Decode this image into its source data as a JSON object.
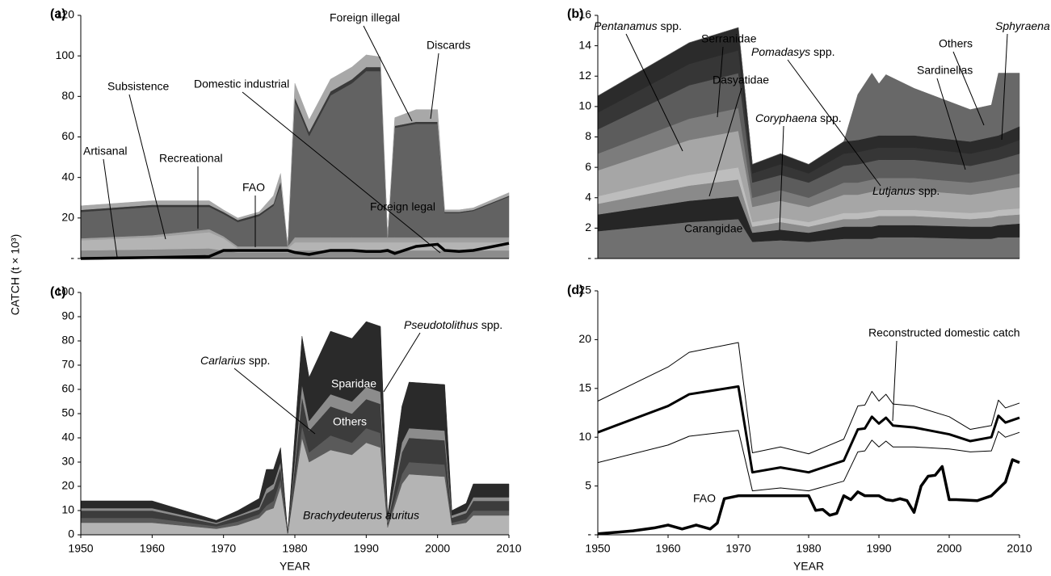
{
  "chart_data": [
    {
      "type": "stacked_area",
      "panel_label": "(a)",
      "ylabel": "CATCH (t × 10³)",
      "x": [
        1950,
        1960,
        1968,
        1970,
        1972,
        1975,
        1977,
        1978,
        1979,
        1980,
        1982,
        1985,
        1988,
        1990,
        1992,
        1993,
        1994,
        1997,
        2000,
        2001,
        2003,
        2005,
        2010
      ],
      "xlim": [
        1950,
        2010
      ],
      "ylim": [
        0,
        120
      ],
      "yticks": [
        {
          "value": 0,
          "label": "-"
        },
        20,
        40,
        60,
        80,
        100,
        120
      ],
      "series": [
        {
          "name": "Artisanal",
          "color": "#8c8c8c",
          "values": [
            4,
            4.5,
            5,
            4,
            3,
            3,
            3,
            3,
            3,
            4,
            4,
            4,
            4,
            4,
            4,
            4,
            4,
            4,
            4,
            4,
            4,
            4,
            4
          ]
        },
        {
          "name": "Subsistence",
          "color": "#b4b4b4",
          "values": [
            5,
            6,
            8,
            6,
            2,
            2,
            2,
            2,
            2,
            4,
            4,
            4,
            4,
            4,
            4,
            4,
            4,
            4,
            4,
            4,
            4,
            4,
            4
          ]
        },
        {
          "name": "Recreational",
          "color": "#a0a0a0",
          "values": [
            1,
            1,
            1.5,
            1,
            1,
            1,
            1,
            1,
            1,
            1.5,
            1.5,
            1.5,
            1.5,
            1.5,
            1.5,
            1.5,
            1.5,
            1.5,
            1.5,
            1.5,
            1.5,
            1.5,
            1.5
          ]
        },
        {
          "name": "Domestic industrial",
          "color": "#9a9a9a",
          "values": [
            0,
            0,
            0,
            0,
            0,
            0,
            0,
            0,
            0,
            1,
            1,
            1,
            1,
            1,
            1,
            1,
            1,
            1,
            1,
            1,
            1,
            1,
            1
          ]
        },
        {
          "name": "Foreign legal",
          "color": "#626262",
          "values": [
            13,
            14,
            11,
            11,
            12,
            15,
            20,
            30,
            0,
            67,
            50,
            70,
            76,
            82,
            82,
            0,
            54,
            56,
            56,
            12,
            12,
            13,
            20
          ]
        },
        {
          "name": "Foreign illegal",
          "color": "#3a3a3a",
          "values": [
            1,
            1,
            1,
            1,
            1,
            1,
            1,
            2,
            0,
            2,
            2,
            2,
            2,
            2,
            2,
            0,
            1,
            1,
            1,
            0.5,
            0.5,
            0.5,
            0.5
          ]
        },
        {
          "name": "Discards",
          "color": "#a8a8a8",
          "values": [
            2,
            2,
            2,
            1,
            1,
            1,
            4,
            4,
            0,
            7,
            6,
            6,
            6,
            6,
            5,
            0,
            4,
            6,
            6,
            1,
            1,
            1,
            1.5
          ]
        }
      ],
      "lines": [
        {
          "name": "FAO",
          "color": "#000000",
          "line_width": 3.5,
          "values": [
            0,
            0.5,
            1,
            4,
            4,
            4,
            4,
            4,
            4,
            3,
            2,
            4,
            4,
            3.5,
            3.5,
            4,
            2.5,
            6,
            7,
            4,
            3.5,
            4,
            7.5
          ]
        }
      ],
      "annotations": [
        {
          "text": "Artisanal"
        },
        {
          "text": "Subsistence"
        },
        {
          "text": "Recreational"
        },
        {
          "text": "FAO"
        },
        {
          "text": "Domestic industrial"
        },
        {
          "text": "Foreign illegal"
        },
        {
          "text": "Discards"
        },
        {
          "text": "Foreign legal"
        }
      ]
    },
    {
      "type": "stacked_area",
      "panel_label": "(b)",
      "x": [
        1950,
        1963,
        1970,
        1972,
        1976,
        1980,
        1985,
        1987,
        1989,
        1990,
        1991,
        1995,
        2003,
        2006,
        2007,
        2010
      ],
      "xlim": [
        1950,
        2010
      ],
      "ylim": [
        0,
        16
      ],
      "yticks": [
        {
          "value": 0,
          "label": "-"
        },
        2,
        4,
        6,
        8,
        10,
        12,
        14,
        16
      ],
      "series": [
        {
          "name": "Carangidae",
          "color": "#707070",
          "values": [
            1.8,
            2.4,
            2.6,
            1.1,
            1.2,
            1.1,
            1.3,
            1.3,
            1.3,
            1.4,
            1.4,
            1.4,
            1.3,
            1.3,
            1.4,
            1.4
          ]
        },
        {
          "name": "Lutjanus spp.",
          "color": "#262626",
          "values": [
            1.1,
            1.4,
            1.5,
            0.6,
            0.7,
            0.6,
            0.8,
            0.8,
            0.8,
            0.8,
            0.8,
            0.8,
            0.8,
            0.8,
            0.8,
            0.9
          ]
        },
        {
          "name": "Coryphaena spp.",
          "color": "#8a8a8a",
          "values": [
            0.7,
            1.0,
            1.1,
            0.4,
            0.5,
            0.4,
            0.5,
            0.5,
            0.6,
            0.6,
            0.6,
            0.6,
            0.5,
            0.6,
            0.6,
            0.6
          ]
        },
        {
          "name": "Dasyatidae",
          "color": "#bdbdbd",
          "values": [
            0.5,
            0.7,
            0.8,
            0.3,
            0.3,
            0.3,
            0.4,
            0.4,
            0.4,
            0.4,
            0.4,
            0.4,
            0.4,
            0.4,
            0.4,
            0.4
          ]
        },
        {
          "name": "Pentanamus spp.",
          "color": "#a6a6a6",
          "values": [
            1.7,
            2.3,
            2.4,
            1.0,
            1.1,
            1.0,
            1.2,
            1.2,
            1.3,
            1.3,
            1.3,
            1.3,
            1.2,
            1.3,
            1.3,
            1.4
          ]
        },
        {
          "name": "Pomadasys spp.",
          "color": "#7c7c7c",
          "values": [
            1.1,
            1.4,
            1.5,
            0.6,
            0.7,
            0.6,
            0.8,
            0.8,
            0.8,
            0.8,
            0.8,
            0.8,
            0.8,
            0.8,
            0.8,
            0.9
          ]
        },
        {
          "name": "Serranidae",
          "color": "#5c5c5c",
          "values": [
            1.6,
            2.2,
            2.3,
            1.0,
            1.0,
            1.0,
            1.1,
            1.2,
            1.2,
            1.2,
            1.2,
            1.2,
            1.1,
            1.2,
            1.2,
            1.3
          ]
        },
        {
          "name": "Sardinellas",
          "color": "#363636",
          "values": [
            1.1,
            1.4,
            1.5,
            0.6,
            0.7,
            0.6,
            0.8,
            0.8,
            0.8,
            0.8,
            0.8,
            0.8,
            0.8,
            0.8,
            0.8,
            0.9
          ]
        },
        {
          "name": "Sphyraena spp.",
          "color": "#2b2b2b",
          "values": [
            1.1,
            1.4,
            1.5,
            0.6,
            0.7,
            0.6,
            0.8,
            0.8,
            0.8,
            0.8,
            0.8,
            0.8,
            0.8,
            0.8,
            0.8,
            0.9
          ]
        },
        {
          "name": "Others",
          "color": "#686868",
          "values": [
            0,
            0,
            0,
            0,
            0,
            0,
            0,
            3.0,
            4.2,
            3.4,
            4.0,
            3.1,
            2.1,
            2.1,
            4.1,
            3.5
          ]
        }
      ],
      "annotations": [
        {
          "text": "Pentanamus spp.",
          "italic": "genus"
        },
        {
          "text": "Serranidae"
        },
        {
          "text": "Dasyatidae"
        },
        {
          "text": "Pomadasys spp.",
          "italic": "genus"
        },
        {
          "text": "Others"
        },
        {
          "text": "Sphyraena spp.",
          "italic": "genus"
        },
        {
          "text": "Sardinellas"
        },
        {
          "text": "Coryphaena spp.",
          "italic": "genus"
        },
        {
          "text": "Lutjanus spp.",
          "italic": "genus"
        },
        {
          "text": "Carangidae"
        }
      ]
    },
    {
      "type": "stacked_area",
      "panel_label": "(c)",
      "xlabel": "YEAR",
      "x": [
        1950,
        1960,
        1969,
        1972,
        1975,
        1976,
        1977,
        1978,
        1979,
        1981,
        1982,
        1985,
        1988,
        1990,
        1992,
        1993,
        1995,
        1996,
        2001,
        2002,
        2004,
        2005,
        2010
      ],
      "xlim": [
        1950,
        2010
      ],
      "xticks": [
        1950,
        1960,
        1970,
        1980,
        1990,
        2000,
        2010
      ],
      "ylim": [
        0,
        100
      ],
      "yticks": [
        0,
        10,
        20,
        30,
        40,
        50,
        60,
        70,
        80,
        90,
        100
      ],
      "series": [
        {
          "name": "Brachydeuterus auritus",
          "color": "#b4b4b4",
          "values": [
            5,
            5,
            2.5,
            4,
            7,
            10,
            11,
            20,
            0.5,
            40,
            30,
            35,
            33,
            38,
            36,
            3,
            21,
            25,
            24,
            4,
            5,
            8,
            8
          ]
        },
        {
          "name": "Carlarius spp.",
          "color": "#5a5a5a",
          "values": [
            2,
            2,
            1,
            1.5,
            1.5,
            2,
            3,
            3,
            0,
            5,
            4,
            6,
            5,
            6,
            6,
            1,
            4,
            5,
            5,
            1,
            1.5,
            2,
            2
          ]
        },
        {
          "name": "Others",
          "color": "#3c3c3c",
          "values": [
            3,
            3,
            1,
            2,
            2,
            5,
            5,
            5,
            0,
            12,
            9,
            12,
            12,
            12,
            12,
            1,
            9,
            10,
            10,
            2,
            2.5,
            4,
            4
          ]
        },
        {
          "name": "Pseudotolithus spp.",
          "color": "#8c8c8c",
          "values": [
            1,
            1,
            0.5,
            0.5,
            1,
            2,
            2,
            2,
            0,
            5,
            4,
            5,
            5,
            5,
            5,
            1,
            4,
            4,
            4,
            1,
            1,
            1.5,
            1.5
          ]
        },
        {
          "name": "Sparidae",
          "color": "#2a2a2a",
          "values": [
            3,
            3,
            1,
            2,
            3.5,
            8,
            6,
            6,
            0.5,
            20,
            18,
            26,
            26,
            27,
            27,
            2,
            15,
            19,
            19,
            2,
            3,
            5.5,
            5.5
          ]
        }
      ],
      "annotations": [
        {
          "text": "Sparidae",
          "color": "#ffffff"
        },
        {
          "text": "Pseudotolithus spp.",
          "italic": "genus"
        },
        {
          "text": "Others",
          "color": "#ffffff"
        },
        {
          "text": "Carlarius spp.",
          "italic": "genus"
        },
        {
          "text": "Brachydeuterus auritus",
          "italic": "all"
        }
      ]
    },
    {
      "type": "line",
      "panel_label": "(d)",
      "xlabel": "YEAR",
      "x": [
        1950,
        1960,
        1963,
        1970,
        1972,
        1976,
        1980,
        1985,
        1987,
        1988,
        1989,
        1990,
        1991,
        1992,
        1995,
        2000,
        2003,
        2006,
        2007,
        2008,
        2010
      ],
      "xlim": [
        1950,
        2010
      ],
      "xticks": [
        1950,
        1960,
        1970,
        1980,
        1990,
        2000,
        2010
      ],
      "ylim": [
        0,
        25
      ],
      "yticks": [
        {
          "value": 0,
          "label": "-"
        },
        5,
        10,
        15,
        20,
        25
      ],
      "series": [
        {
          "name": "Reconstructed domestic catch",
          "color": "#000000",
          "line_width": 3,
          "values": [
            10.5,
            13.2,
            14.4,
            15.2,
            6.4,
            6.9,
            6.4,
            7.6,
            10.8,
            10.9,
            12.1,
            11.4,
            12,
            11.2,
            11,
            10.3,
            9.6,
            10,
            12.2,
            11.5,
            12
          ]
        },
        {
          "color": "#000000",
          "line_width": 1,
          "values": [
            13.7,
            17.2,
            18.7,
            19.7,
            8.4,
            9,
            8.3,
            9.8,
            13.2,
            13.3,
            14.7,
            13.7,
            14.4,
            13.4,
            13.2,
            12.1,
            10.8,
            11.2,
            13.8,
            13,
            13.5
          ]
        },
        {
          "color": "#000000",
          "line_width": 1,
          "values": [
            7.4,
            9.2,
            10.1,
            10.7,
            4.5,
            4.8,
            4.5,
            5.5,
            8.5,
            8.6,
            9.7,
            9,
            9.6,
            9,
            9,
            8.8,
            8.5,
            8.6,
            10.6,
            10,
            10.5
          ]
        },
        {
          "name": "FAO",
          "color": "#000000",
          "line_width": 3.5,
          "x": [
            1950,
            1955,
            1958,
            1960,
            1962,
            1964,
            1966,
            1967,
            1968,
            1970,
            1980,
            1981,
            1982,
            1983,
            1984,
            1985,
            1986,
            1987,
            1988,
            1990,
            1991,
            1992,
            1993,
            1994,
            1995,
            1996,
            1997,
            1998,
            1999,
            2000,
            2001,
            2004,
            2006,
            2008,
            2009,
            2010
          ],
          "values": [
            0.1,
            0.4,
            0.7,
            1,
            0.6,
            1,
            0.6,
            1.2,
            3.7,
            4,
            4,
            2.5,
            2.6,
            2,
            2.2,
            4,
            3.6,
            4.4,
            4,
            4,
            3.6,
            3.5,
            3.7,
            3.5,
            2.3,
            5,
            6,
            6.1,
            7,
            3.6,
            3.6,
            3.5,
            4,
            5.4,
            7.7,
            7.4
          ]
        }
      ]
    }
  ]
}
